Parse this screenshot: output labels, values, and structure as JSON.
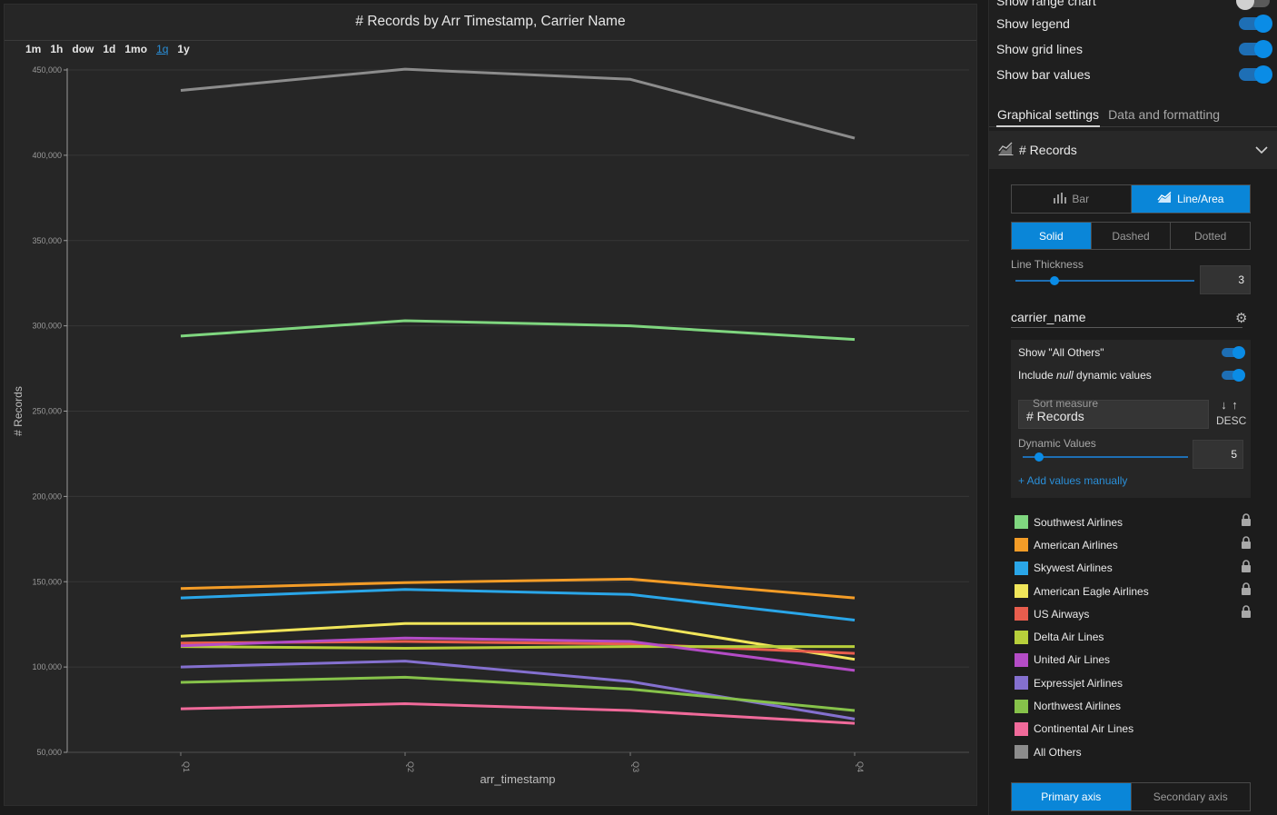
{
  "chart": {
    "title": "# Records by Arr Timestamp, Carrier Name",
    "granularity": [
      "1m",
      "1h",
      "dow",
      "1d",
      "1mo",
      "1q",
      "1y"
    ],
    "granularity_active": "1q"
  },
  "chart_data": {
    "type": "line",
    "title": "# Records by Arr Timestamp, Carrier Name",
    "xlabel": "arr_timestamp",
    "ylabel": "# Records",
    "categories": [
      "Q1",
      "Q2",
      "Q3",
      "Q4"
    ],
    "ylim": [
      50000,
      450000
    ],
    "yticks": [
      50000,
      100000,
      150000,
      200000,
      250000,
      300000,
      350000,
      400000,
      450000
    ],
    "ytick_labels": [
      "50,000",
      "100,000",
      "150,000",
      "200,000",
      "250,000",
      "300,000",
      "350,000",
      "400,000",
      "450,000"
    ],
    "grid": true,
    "series": [
      {
        "name": "All Others",
        "color": "#8c8c8c",
        "values": [
          438000,
          450500,
          444500,
          410000
        ]
      },
      {
        "name": "Southwest Airlines",
        "color": "#7fd67f",
        "values": [
          294000,
          303000,
          300000,
          292000
        ]
      },
      {
        "name": "American Airlines",
        "color": "#f39c27",
        "values": [
          146000,
          149500,
          151500,
          140500
        ]
      },
      {
        "name": "Skywest Airlines",
        "color": "#2aa6e8",
        "values": [
          140500,
          145500,
          142500,
          127500
        ]
      },
      {
        "name": "American Eagle Airlines",
        "color": "#f0e55a",
        "values": [
          118000,
          125500,
          125500,
          104500
        ]
      },
      {
        "name": "US Airways",
        "color": "#e85d4d",
        "values": [
          114000,
          115000,
          113500,
          108000
        ]
      },
      {
        "name": "Delta Air Lines",
        "color": "#b7cf3b",
        "values": [
          112000,
          111000,
          112000,
          112000
        ]
      },
      {
        "name": "United Air Lines",
        "color": "#b44cc6",
        "values": [
          112500,
          117000,
          115000,
          98000
        ]
      },
      {
        "name": "Expressjet Airlines",
        "color": "#8470cf",
        "values": [
          100000,
          103500,
          91500,
          69500
        ]
      },
      {
        "name": "Northwest Airlines",
        "color": "#86c24a",
        "values": [
          91000,
          94000,
          87000,
          74500
        ]
      },
      {
        "name": "Continental Air Lines",
        "color": "#f06a9a",
        "values": [
          75500,
          78500,
          74500,
          67000
        ]
      }
    ]
  },
  "panel": {
    "toggles": [
      {
        "label": "Show range chart",
        "on": false
      },
      {
        "label": "Show legend",
        "on": true
      },
      {
        "label": "Show grid lines",
        "on": true
      },
      {
        "label": "Show bar values",
        "on": true
      }
    ],
    "tabs": [
      "Graphical settings",
      "Data and formatting"
    ],
    "active_tab": "Graphical settings",
    "measure": {
      "title": "# Records",
      "chart_types": [
        "Bar",
        "Line/Area"
      ],
      "chart_type_active": "Line/Area",
      "line_styles": [
        "Solid",
        "Dashed",
        "Dotted"
      ],
      "line_style_active": "Solid",
      "line_thickness_label": "Line Thickness",
      "line_thickness": "3",
      "line_thickness_fraction": 0.22
    },
    "dimension": {
      "name": "carrier_name",
      "show_all_others_label": "Show \"All Others\"",
      "include_null_prefix": "Include ",
      "include_null_em": "null",
      "include_null_suffix": " dynamic values",
      "sort_measure_caption": "Sort measure",
      "sort_measure": "# Records",
      "sort_direction": "DESC",
      "sort_arrows": "↓ ↑",
      "dynamic_values_label": "Dynamic Values",
      "dynamic_values": "5",
      "dynamic_values_fraction": 0.1,
      "add_values": "+ Add values manually"
    },
    "legend": [
      {
        "label": "Southwest Airlines",
        "color": "#7fd67f",
        "locked": true
      },
      {
        "label": "American Airlines",
        "color": "#f39c27",
        "locked": true
      },
      {
        "label": "Skywest Airlines",
        "color": "#2aa6e8",
        "locked": true
      },
      {
        "label": "American Eagle Airlines",
        "color": "#f0e55a",
        "locked": true
      },
      {
        "label": "US Airways",
        "color": "#e85d4d",
        "locked": true
      },
      {
        "label": "Delta Air Lines",
        "color": "#b7cf3b",
        "locked": false
      },
      {
        "label": "United Air Lines",
        "color": "#b44cc6",
        "locked": false
      },
      {
        "label": "Expressjet Airlines",
        "color": "#8470cf",
        "locked": false
      },
      {
        "label": "Northwest Airlines",
        "color": "#86c24a",
        "locked": false
      },
      {
        "label": "Continental Air Lines",
        "color": "#f06a9a",
        "locked": false
      },
      {
        "label": "All Others",
        "color": "#8c8c8c",
        "locked": false
      }
    ],
    "axis_options": [
      "Primary axis",
      "Secondary axis"
    ],
    "axis_active": "Primary axis"
  }
}
